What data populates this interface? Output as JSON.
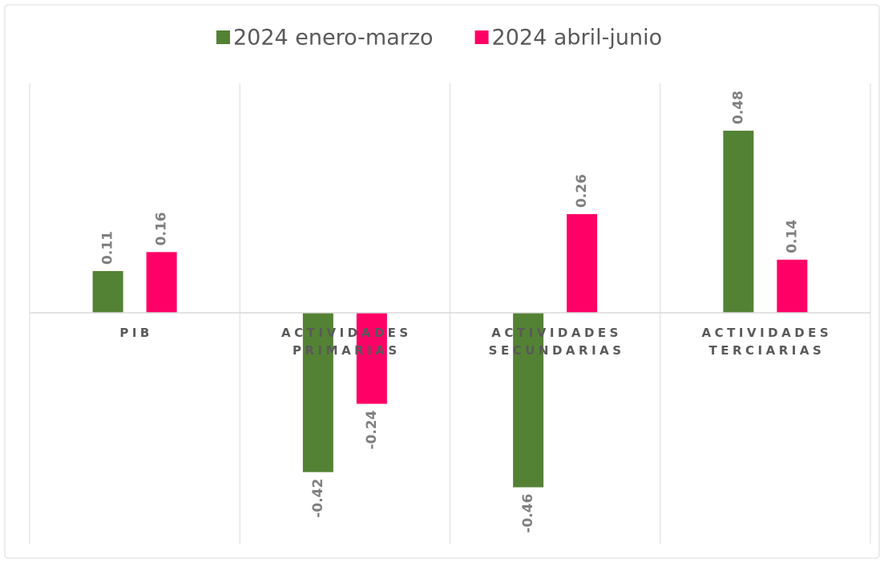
{
  "chart_data": {
    "type": "bar",
    "categories": [
      "PIB",
      "ACTIVIDADES PRIMARIAS",
      "ACTIVIDADES SECUNDARIAS",
      "ACTIVIDADES TERCIARIAS"
    ],
    "series": [
      {
        "name": "2024 enero-marzo",
        "color": "#548235",
        "values": [
          0.11,
          -0.42,
          -0.46,
          0.48
        ]
      },
      {
        "name": "2024 abril-junio",
        "color": "#ff0066",
        "values": [
          0.16,
          -0.24,
          0.26,
          0.14
        ]
      }
    ],
    "grid": true,
    "legend": "top"
  }
}
